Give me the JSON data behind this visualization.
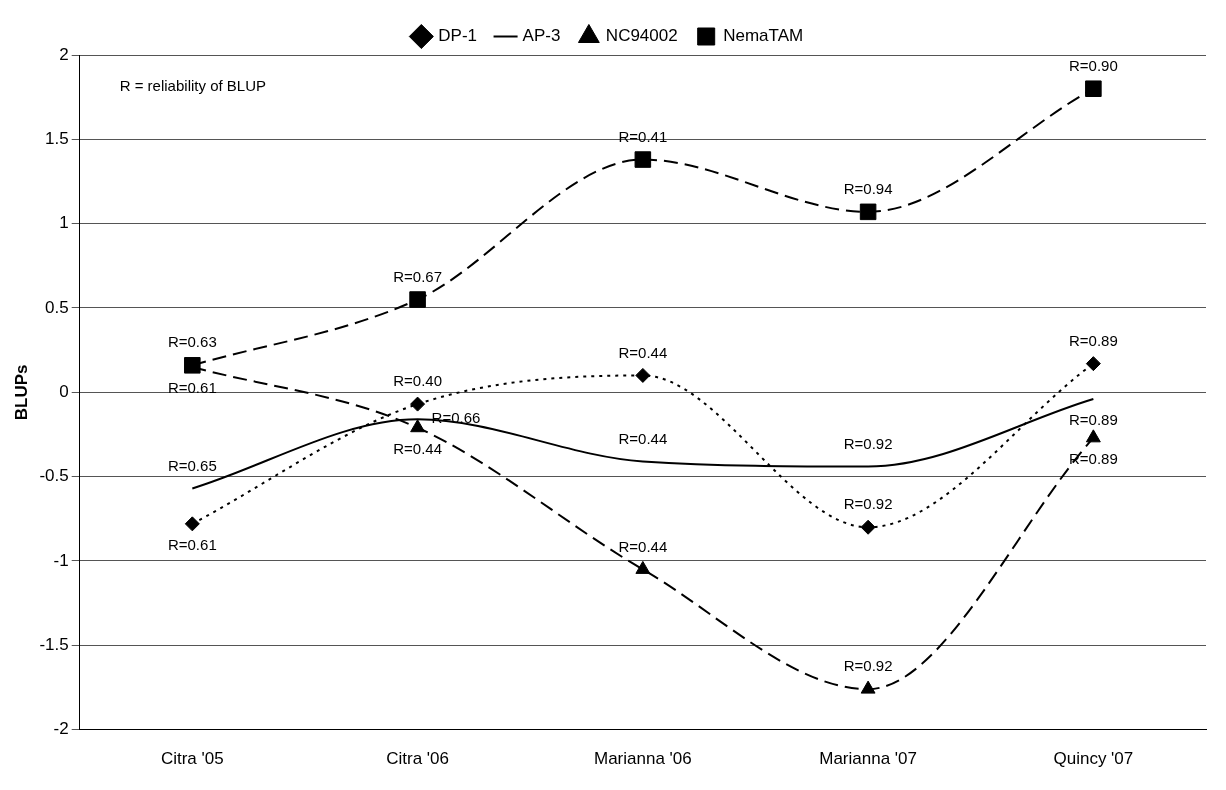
{
  "chart_data": {
    "type": "line",
    "ylabel": "BLUPs",
    "categories": [
      "Citra '05",
      "Citra '06",
      "Marianna '06",
      "Marianna '07",
      "Quincy '07"
    ],
    "series": [
      {
        "name": "DP-1",
        "color": "#000000",
        "marker": "diamond",
        "line_style": "dotted",
        "values": [
          -0.78,
          -0.07,
          0.1,
          -0.8,
          0.17
        ]
      },
      {
        "name": "AP-3",
        "color": "#000000",
        "marker": "none",
        "line_style": "solid",
        "values": [
          -0.57,
          -0.16,
          -0.41,
          -0.44,
          -0.04
        ]
      },
      {
        "name": "NC94002",
        "color": "#000000",
        "marker": "triangle",
        "line_style": "dashed",
        "values": [
          0.15,
          -0.21,
          -1.05,
          -1.76,
          -0.27
        ]
      },
      {
        "name": "NemaTAM",
        "color": "#000000",
        "marker": "square",
        "line_style": "dashed",
        "values": [
          0.16,
          0.55,
          1.38,
          1.07,
          1.8
        ]
      }
    ],
    "ylim": [
      -2,
      2
    ],
    "yticks": [
      -2,
      -1.5,
      -1,
      -0.5,
      0,
      0.5,
      1,
      1.5,
      2
    ],
    "grid": "y",
    "legend": "top",
    "annotations": [
      "R = reliability of BLUP",
      {
        "text": "R=0.63",
        "x": "Citra '05",
        "y": 0.16
      },
      {
        "text": "R=0.61",
        "x": "Citra '05",
        "y": 0.15
      },
      {
        "text": "R=0.65",
        "x": "Citra '05",
        "y": -0.57
      },
      {
        "text": "R=0.61",
        "x": "Citra '05",
        "y": -0.78
      },
      {
        "text": "R=0.67",
        "x": "Citra '06",
        "y": 0.55
      },
      {
        "text": "R=0.40",
        "x": "Citra '06",
        "y": -0.07
      },
      {
        "text": "R=0.66",
        "x": "Citra '06",
        "y": -0.16
      },
      {
        "text": "R=0.44",
        "x": "Citra '06",
        "y": -0.21
      },
      {
        "text": "R=0.41",
        "x": "Marianna '06",
        "y": 1.38
      },
      {
        "text": "R=0.44",
        "x": "Marianna '06",
        "y": 0.1
      },
      {
        "text": "R=0.44",
        "x": "Marianna '06",
        "y": -0.41
      },
      {
        "text": "R=0.44",
        "x": "Marianna '06",
        "y": -1.05
      },
      {
        "text": "R=0.94",
        "x": "Marianna '07",
        "y": 1.07
      },
      {
        "text": "R=0.92",
        "x": "Marianna '07",
        "y": -0.44
      },
      {
        "text": "R=0.92",
        "x": "Marianna '07",
        "y": -0.8
      },
      {
        "text": "R=0.92",
        "x": "Marianna '07",
        "y": -1.76
      },
      {
        "text": "R=0.90",
        "x": "Quincy '07",
        "y": 1.8
      },
      {
        "text": "R=0.89",
        "x": "Quincy '07",
        "y": 0.17
      },
      {
        "text": "R=0.89",
        "x": "Quincy '07",
        "y": -0.04
      },
      {
        "text": "R=0.89",
        "x": "Quincy '07",
        "y": -0.27
      }
    ]
  }
}
